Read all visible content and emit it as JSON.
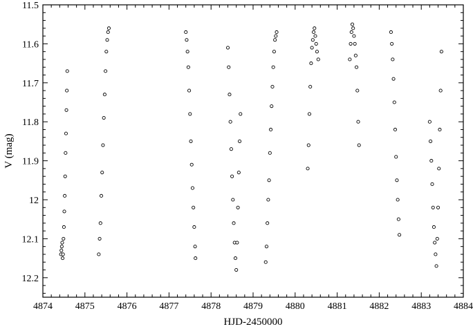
{
  "chart_data": {
    "type": "scatter",
    "xlabel": "HJD-2450000",
    "ylabel": "V (mag)",
    "xlim": [
      4874,
      4884
    ],
    "ylim": [
      11.5,
      12.25
    ],
    "y_inverted": true,
    "grid": false,
    "legend": "none",
    "marker": "open-circle",
    "x_ticks": [
      4874,
      4875,
      4876,
      4877,
      4878,
      4879,
      4880,
      4881,
      4882,
      4883,
      4884
    ],
    "x_tick_labels": [
      "4874",
      "4875",
      "4876",
      "4877",
      "4878",
      "4879",
      "4880",
      "4881",
      "4882",
      "4883",
      "4884"
    ],
    "y_ticks": [
      11.5,
      11.6,
      11.7,
      11.8,
      11.9,
      12.0,
      12.1,
      12.2
    ],
    "y_tick_labels": [
      "11.5",
      "11.6",
      "11.7",
      "11.8",
      "11.9",
      "12",
      "12.1",
      "12.2"
    ],
    "series": [
      {
        "points": [
          [
            4874.43,
            12.14
          ],
          [
            4874.44,
            12.13
          ],
          [
            4874.45,
            12.12
          ],
          [
            4874.46,
            12.11
          ],
          [
            4874.47,
            12.15
          ],
          [
            4874.48,
            12.14
          ],
          [
            4874.49,
            12.1
          ],
          [
            4874.5,
            12.07
          ],
          [
            4874.51,
            12.03
          ],
          [
            4874.52,
            11.99
          ],
          [
            4874.53,
            11.94
          ],
          [
            4874.54,
            11.88
          ],
          [
            4874.55,
            11.83
          ],
          [
            4874.56,
            11.77
          ],
          [
            4874.57,
            11.72
          ],
          [
            4874.58,
            11.67
          ],
          [
            4875.33,
            12.14
          ],
          [
            4875.35,
            12.1
          ],
          [
            4875.37,
            12.06
          ],
          [
            4875.39,
            11.99
          ],
          [
            4875.41,
            11.93
          ],
          [
            4875.43,
            11.86
          ],
          [
            4875.45,
            11.79
          ],
          [
            4875.47,
            11.73
          ],
          [
            4875.49,
            11.67
          ],
          [
            4875.51,
            11.62
          ],
          [
            4875.53,
            11.59
          ],
          [
            4875.55,
            11.57
          ],
          [
            4875.57,
            11.56
          ],
          [
            4877.4,
            11.57
          ],
          [
            4877.42,
            11.59
          ],
          [
            4877.44,
            11.62
          ],
          [
            4877.46,
            11.66
          ],
          [
            4877.48,
            11.72
          ],
          [
            4877.5,
            11.78
          ],
          [
            4877.52,
            11.85
          ],
          [
            4877.54,
            11.91
          ],
          [
            4877.56,
            11.97
          ],
          [
            4877.58,
            12.02
          ],
          [
            4877.6,
            12.07
          ],
          [
            4877.62,
            12.12
          ],
          [
            4877.63,
            12.15
          ],
          [
            4878.4,
            11.61
          ],
          [
            4878.42,
            11.66
          ],
          [
            4878.44,
            11.73
          ],
          [
            4878.46,
            11.8
          ],
          [
            4878.48,
            11.87
          ],
          [
            4878.5,
            11.94
          ],
          [
            4878.52,
            12.0
          ],
          [
            4878.54,
            12.06
          ],
          [
            4878.56,
            12.11
          ],
          [
            4878.58,
            12.15
          ],
          [
            4878.6,
            12.18
          ],
          [
            4878.62,
            12.11
          ],
          [
            4878.64,
            12.02
          ],
          [
            4878.66,
            11.93
          ],
          [
            4878.68,
            11.85
          ],
          [
            4878.7,
            11.78
          ],
          [
            4879.3,
            12.16
          ],
          [
            4879.32,
            12.12
          ],
          [
            4879.34,
            12.06
          ],
          [
            4879.36,
            12.0
          ],
          [
            4879.38,
            11.95
          ],
          [
            4879.4,
            11.88
          ],
          [
            4879.42,
            11.82
          ],
          [
            4879.44,
            11.76
          ],
          [
            4879.46,
            11.71
          ],
          [
            4879.48,
            11.66
          ],
          [
            4879.5,
            11.62
          ],
          [
            4879.52,
            11.59
          ],
          [
            4879.54,
            11.58
          ],
          [
            4879.56,
            11.57
          ],
          [
            4880.3,
            11.92
          ],
          [
            4880.32,
            11.86
          ],
          [
            4880.34,
            11.78
          ],
          [
            4880.36,
            11.71
          ],
          [
            4880.38,
            11.65
          ],
          [
            4880.4,
            11.61
          ],
          [
            4880.42,
            11.59
          ],
          [
            4880.44,
            11.57
          ],
          [
            4880.46,
            11.56
          ],
          [
            4880.48,
            11.58
          ],
          [
            4880.5,
            11.6
          ],
          [
            4880.52,
            11.62
          ],
          [
            4880.55,
            11.64
          ],
          [
            4881.3,
            11.64
          ],
          [
            4881.32,
            11.6
          ],
          [
            4881.34,
            11.57
          ],
          [
            4881.36,
            11.55
          ],
          [
            4881.38,
            11.56
          ],
          [
            4881.4,
            11.58
          ],
          [
            4881.42,
            11.6
          ],
          [
            4881.44,
            11.63
          ],
          [
            4881.46,
            11.66
          ],
          [
            4881.48,
            11.72
          ],
          [
            4881.5,
            11.8
          ],
          [
            4881.52,
            11.86
          ],
          [
            4882.28,
            11.57
          ],
          [
            4882.3,
            11.6
          ],
          [
            4882.32,
            11.64
          ],
          [
            4882.34,
            11.69
          ],
          [
            4882.36,
            11.75
          ],
          [
            4882.38,
            11.82
          ],
          [
            4882.4,
            11.89
          ],
          [
            4882.42,
            11.95
          ],
          [
            4882.44,
            12.0
          ],
          [
            4882.46,
            12.05
          ],
          [
            4882.48,
            12.09
          ],
          [
            4883.2,
            11.8
          ],
          [
            4883.22,
            11.85
          ],
          [
            4883.24,
            11.9
          ],
          [
            4883.26,
            11.96
          ],
          [
            4883.28,
            12.02
          ],
          [
            4883.3,
            12.07
          ],
          [
            4883.32,
            12.11
          ],
          [
            4883.34,
            12.14
          ],
          [
            4883.36,
            12.17
          ],
          [
            4883.38,
            12.1
          ],
          [
            4883.4,
            12.02
          ],
          [
            4883.42,
            11.92
          ],
          [
            4883.44,
            11.82
          ],
          [
            4883.46,
            11.72
          ],
          [
            4883.48,
            11.62
          ]
        ]
      }
    ]
  }
}
